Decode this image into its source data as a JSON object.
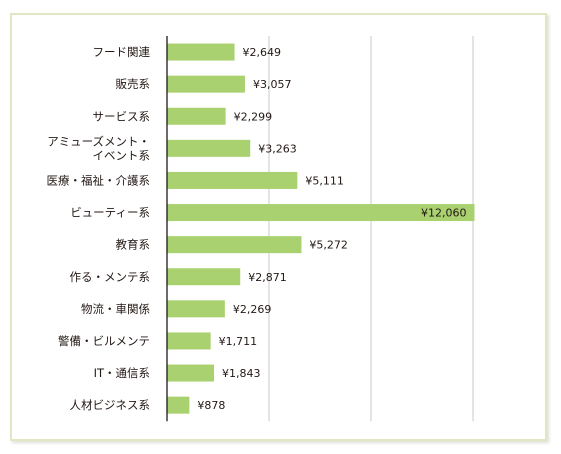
{
  "chart_data": {
    "type": "bar",
    "orientation": "horizontal",
    "title": "",
    "xlabel": "",
    "ylabel": "",
    "categories": [
      [
        "フード関連"
      ],
      [
        "販売系"
      ],
      [
        "サービス系"
      ],
      [
        "アミューズメント・",
        "イベント系"
      ],
      [
        "医療・福祉・介護系"
      ],
      [
        "ビューティー系"
      ],
      [
        "教育系"
      ],
      [
        "作る・メンテ系"
      ],
      [
        "物流・車関係"
      ],
      [
        "警備・ビルメンテ"
      ],
      [
        "IT・通信系"
      ],
      [
        "人材ビジネス系"
      ]
    ],
    "values": [
      2649,
      3057,
      2299,
      3263,
      5111,
      12060,
      5272,
      2871,
      2269,
      1711,
      1843,
      878
    ],
    "value_labels": [
      "¥2,649",
      "¥3,057",
      "¥2,299",
      "¥3,263",
      "¥5,111",
      "¥12,060",
      "¥5,272",
      "¥2,871",
      "¥2,269",
      "¥1,711",
      "¥1,843",
      "¥878"
    ],
    "xlim": [
      0,
      14000
    ],
    "gridlines": [
      4000,
      8000,
      12000
    ],
    "grid": true,
    "legend": "none",
    "colors": {
      "bar": "#a9d16f",
      "grid": "#c8c8c8",
      "axis": "#231815",
      "text": "#231815",
      "frame": "#dfe8c2"
    }
  }
}
